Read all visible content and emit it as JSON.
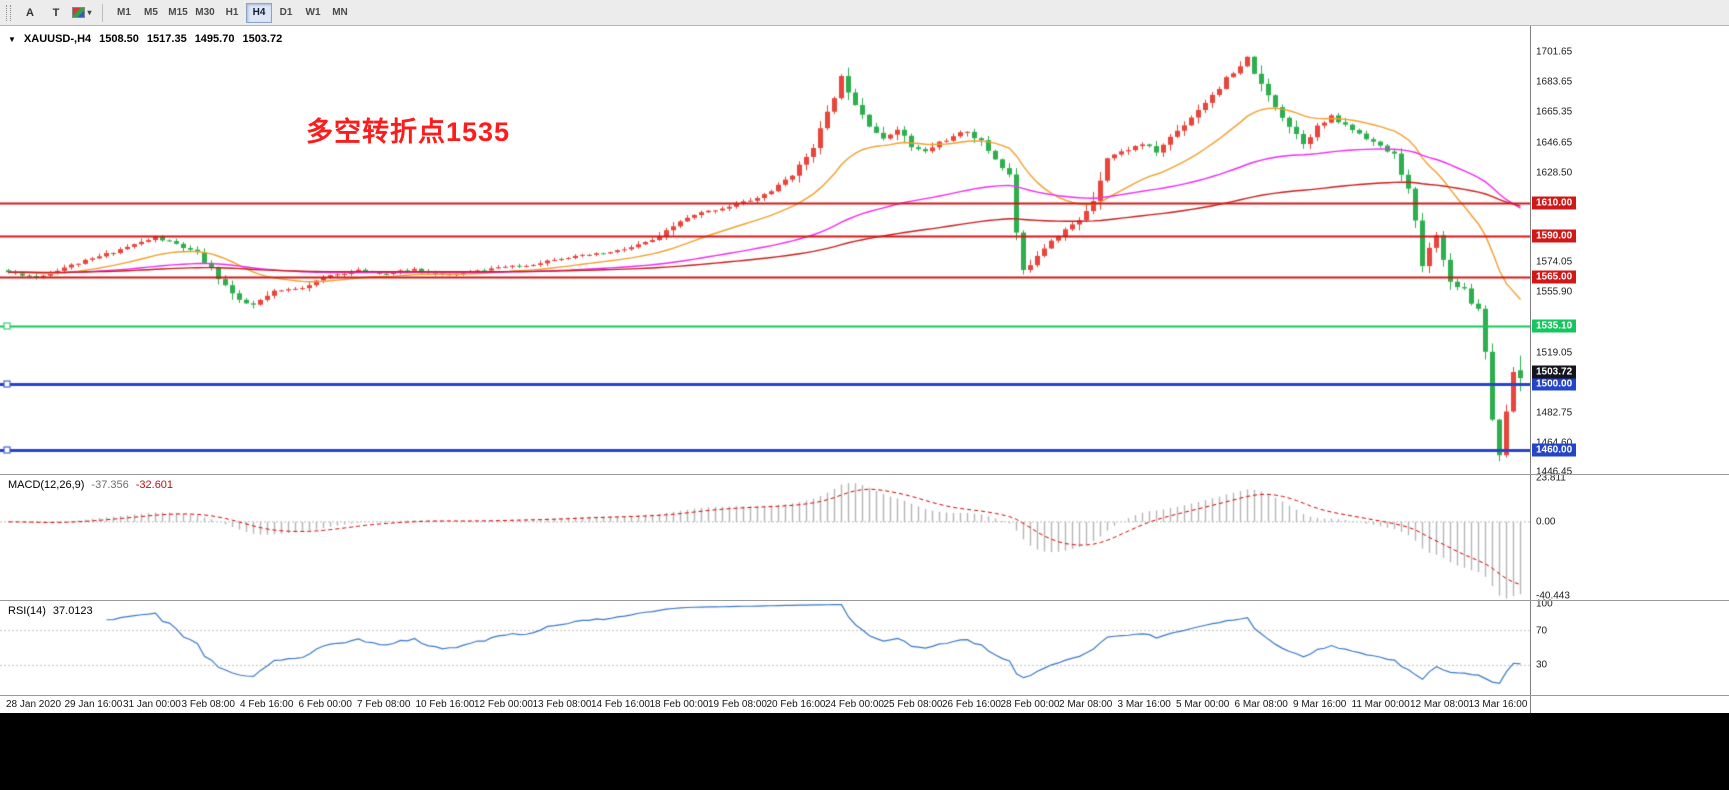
{
  "toolbar": {
    "tools": [
      {
        "label": "A"
      },
      {
        "label": "T"
      }
    ],
    "timeframes": [
      "M1",
      "M5",
      "M15",
      "M30",
      "H1",
      "H4",
      "D1",
      "W1",
      "MN"
    ],
    "active_timeframe": "H4"
  },
  "header": {
    "symbol": "XAUUSD-,H4",
    "open": "1508.50",
    "high": "1517.35",
    "low": "1495.70",
    "close": "1503.72"
  },
  "annotation": {
    "text": "多空转折点1535",
    "color": "#fd1c1c"
  },
  "chart_data": {
    "type": "candlestick",
    "symbol": "XAUUSD-",
    "timeframe": "H4",
    "price_range": [
      1445.5,
      1717.5
    ],
    "y_ticks": [
      "1701.65",
      "1683.65",
      "1665.35",
      "1646.65",
      "1628.50",
      "1574.05",
      "1555.90",
      "1519.05",
      "1482.75",
      "1464.60",
      "1446.45"
    ],
    "x_labels": [
      "28 Jan 2020",
      "29 Jan 16:00",
      "31 Jan 00:00",
      "3 Feb 08:00",
      "4 Feb 16:00",
      "6 Feb 00:00",
      "7 Feb 08:00",
      "10 Feb 16:00",
      "12 Feb 00:00",
      "13 Feb 08:00",
      "14 Feb 16:00",
      "18 Feb 00:00",
      "19 Feb 08:00",
      "20 Feb 16:00",
      "24 Feb 00:00",
      "25 Feb 08:00",
      "26 Feb 16:00",
      "28 Feb 00:00",
      "2 Mar 08:00",
      "3 Mar 16:00",
      "5 Mar 00:00",
      "6 Mar 08:00",
      "9 Mar 16:00",
      "11 Mar 00:00",
      "12 Mar 08:00",
      "13 Mar 16:00"
    ],
    "current_price": "1503.72",
    "current_price_tag_color": "#14141e",
    "up_color": "#e8453c",
    "down_color": "#2fae4e",
    "hlines": [
      {
        "price": 1610.0,
        "label": "1610.00",
        "color": "#d01818",
        "width": 2,
        "handles": false
      },
      {
        "price": 1590.0,
        "label": "1590.00",
        "color": "#d01818",
        "width": 2,
        "handles": false
      },
      {
        "price": 1565.0,
        "label": "1565.00",
        "color": "#d01818",
        "width": 2,
        "handles": false
      },
      {
        "price": 1535.1,
        "label": "1535.10",
        "color": "#16c55e",
        "width": 2,
        "handles": true
      },
      {
        "price": 1500.0,
        "label": "1500.00",
        "color": "#2545c8",
        "width": 3,
        "handles": true
      },
      {
        "price": 1460.0,
        "label": "1460.00",
        "color": "#2545c8",
        "width": 3,
        "handles": true
      }
    ],
    "moving_averages": [
      {
        "period": 21,
        "color": "#f0a030"
      },
      {
        "period": 80,
        "color": "#ee2cee"
      },
      {
        "period": 170,
        "color": "#c81e1e"
      }
    ],
    "candle_count": 217,
    "last_candle": {
      "o": 1508.5,
      "h": 1517.35,
      "l": 1495.7,
      "c": 1503.72
    },
    "price_anchors": [
      [
        0,
        1568
      ],
      [
        4,
        1565
      ],
      [
        8,
        1571
      ],
      [
        12,
        1576
      ],
      [
        16,
        1582
      ],
      [
        21,
        1589
      ],
      [
        24,
        1585
      ],
      [
        27,
        1579
      ],
      [
        30,
        1565
      ],
      [
        33,
        1550
      ],
      [
        35,
        1548
      ],
      [
        38,
        1556
      ],
      [
        42,
        1559
      ],
      [
        46,
        1566
      ],
      [
        50,
        1569
      ],
      [
        54,
        1567
      ],
      [
        58,
        1570
      ],
      [
        62,
        1566
      ],
      [
        66,
        1568
      ],
      [
        70,
        1571
      ],
      [
        74,
        1572
      ],
      [
        78,
        1576
      ],
      [
        82,
        1578
      ],
      [
        86,
        1580
      ],
      [
        89,
        1583
      ],
      [
        93,
        1589
      ],
      [
        96,
        1599
      ],
      [
        99,
        1604
      ],
      [
        103,
        1608
      ],
      [
        107,
        1613
      ],
      [
        110,
        1620
      ],
      [
        113,
        1632
      ],
      [
        115,
        1645
      ],
      [
        117,
        1664
      ],
      [
        119,
        1686
      ],
      [
        121,
        1671
      ],
      [
        123,
        1658
      ],
      [
        125,
        1648
      ],
      [
        127,
        1656
      ],
      [
        129,
        1644
      ],
      [
        131,
        1641
      ],
      [
        133,
        1647
      ],
      [
        135,
        1650
      ],
      [
        137,
        1654
      ],
      [
        139,
        1647
      ],
      [
        141,
        1637
      ],
      [
        143,
        1627
      ],
      [
        144,
        1592
      ],
      [
        145,
        1568
      ],
      [
        147,
        1579
      ],
      [
        149,
        1588
      ],
      [
        151,
        1594
      ],
      [
        153,
        1599
      ],
      [
        155,
        1612
      ],
      [
        157,
        1638
      ],
      [
        159,
        1641
      ],
      [
        162,
        1646
      ],
      [
        164,
        1641
      ],
      [
        166,
        1650
      ],
      [
        168,
        1658
      ],
      [
        170,
        1667
      ],
      [
        172,
        1676
      ],
      [
        174,
        1685
      ],
      [
        176,
        1692
      ],
      [
        177,
        1698
      ],
      [
        179,
        1681
      ],
      [
        181,
        1669
      ],
      [
        183,
        1657
      ],
      [
        185,
        1647
      ],
      [
        187,
        1656
      ],
      [
        189,
        1662
      ],
      [
        191,
        1657
      ],
      [
        194,
        1650
      ],
      [
        196,
        1644
      ],
      [
        198,
        1639
      ],
      [
        200,
        1618
      ],
      [
        201,
        1598
      ],
      [
        202,
        1572
      ],
      [
        203,
        1582
      ],
      [
        204,
        1592
      ],
      [
        205,
        1575
      ],
      [
        206,
        1562
      ],
      [
        208,
        1558
      ],
      [
        209,
        1550
      ],
      [
        210,
        1546
      ],
      [
        211,
        1521
      ],
      [
        212,
        1478
      ],
      [
        213,
        1458
      ],
      [
        214,
        1482
      ],
      [
        215,
        1508
      ],
      [
        216,
        1503.72
      ]
    ],
    "layout": {
      "x0": 6,
      "step": 7,
      "candle_width": 5
    },
    "seed": 11,
    "indicators": {
      "macd": {
        "label": "MACD(12,26,9)",
        "fast": 12,
        "slow": 26,
        "signal": 9,
        "main_value": "-37.356",
        "signal_value": "-32.601",
        "ticks": [
          "23.811",
          "0.00",
          "-40.443"
        ],
        "histogram_color": "#b5b5b5",
        "signal_color": "#d40000"
      },
      "rsi": {
        "label": "RSI(14)",
        "period": 14,
        "value": "37.0123",
        "ticks": [
          "100",
          "70",
          "30"
        ],
        "levels": [
          70,
          30
        ],
        "line_color": "#3c78c8"
      }
    }
  }
}
